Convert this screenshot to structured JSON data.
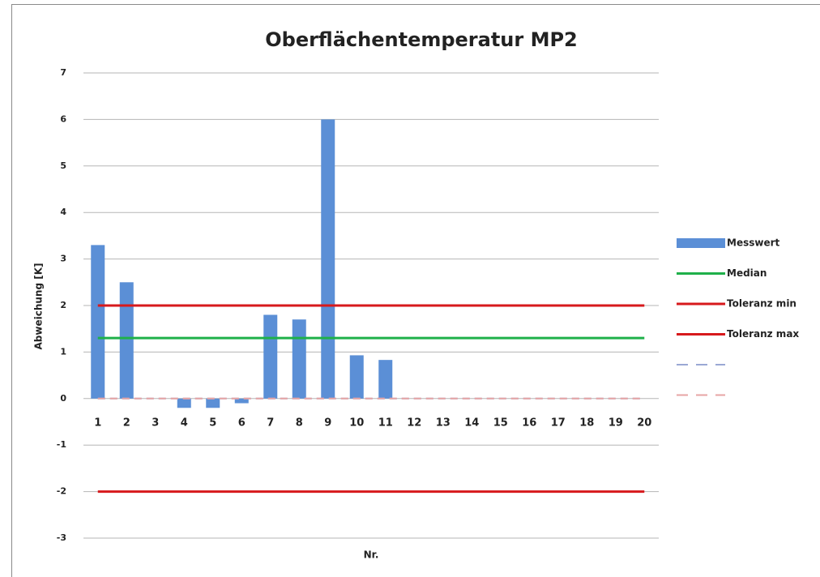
{
  "chart_data": {
    "type": "bar",
    "title": "Oberflächentemperatur MP2",
    "y_label": "Abweichung [K]",
    "x_label": "Nr.",
    "categories": [
      "1",
      "2",
      "3",
      "4",
      "5",
      "6",
      "7",
      "8",
      "9",
      "10",
      "11",
      "12",
      "13",
      "14",
      "15",
      "16",
      "17",
      "18",
      "19",
      "20"
    ],
    "series": [
      {
        "name": "Messwert",
        "type": "bar",
        "color": "#5b8fd6",
        "values": [
          3.3,
          2.5,
          0,
          -0.2,
          -0.2,
          -0.1,
          1.8,
          1.7,
          6.0,
          0.93,
          0.83,
          null,
          null,
          null,
          null,
          null,
          null,
          null,
          null,
          null
        ]
      },
      {
        "name": "Median",
        "type": "line",
        "color": "#1fb04a",
        "values": [
          1.3,
          1.3,
          1.3,
          1.3,
          1.3,
          1.3,
          1.3,
          1.3,
          1.3,
          1.3,
          1.3,
          1.3,
          1.3,
          1.3,
          1.3,
          1.3,
          1.3,
          1.3,
          1.3,
          1.3
        ]
      },
      {
        "name": "Toleranz min",
        "type": "line",
        "color": "#d7191c",
        "values": [
          -2,
          -2,
          -2,
          -2,
          -2,
          -2,
          -2,
          -2,
          -2,
          -2,
          -2,
          -2,
          -2,
          -2,
          -2,
          -2,
          -2,
          -2,
          -2,
          -2
        ]
      },
      {
        "name": "Toleranz max",
        "type": "line",
        "color": "#d7191c",
        "values": [
          2,
          2,
          2,
          2,
          2,
          2,
          2,
          2,
          2,
          2,
          2,
          2,
          2,
          2,
          2,
          2,
          2,
          2,
          2,
          2
        ]
      },
      {
        "type": "line",
        "dashed": true,
        "color": "#9aa8d4",
        "values": [
          0,
          0,
          0,
          0,
          0,
          0,
          0,
          0,
          0,
          0,
          0,
          0,
          0,
          0,
          0,
          0,
          0,
          0,
          0,
          0
        ]
      },
      {
        "type": "line",
        "dashed": true,
        "color": "#e7a4a4",
        "values": [
          0,
          0,
          0,
          0,
          0,
          0,
          0,
          0,
          0,
          0,
          0,
          0,
          0,
          0,
          0,
          0,
          0,
          0,
          0,
          0
        ]
      }
    ],
    "ylim": [
      -3,
      7
    ],
    "yticks": [
      -3,
      -2,
      -1,
      0,
      1,
      2,
      3,
      4,
      5,
      6,
      7
    ],
    "grid": true,
    "legend": "right"
  }
}
